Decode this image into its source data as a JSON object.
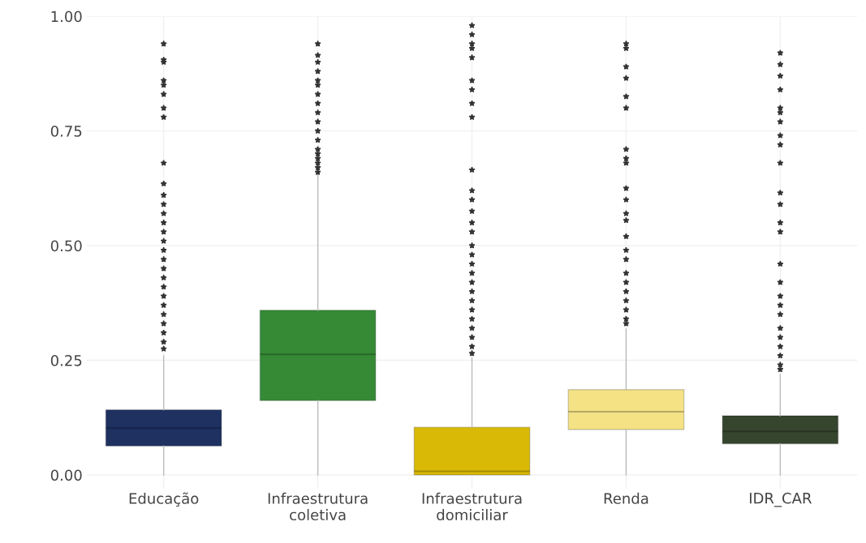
{
  "chart_data": {
    "type": "box",
    "categories": [
      "Educação",
      "Infraestrutura\ncoletiva",
      "Infraestrutura\ndomiciliar",
      "Renda",
      "IDR_CAR"
    ],
    "colors": [
      "#1e3160",
      "#368a36",
      "#d9b906",
      "#f4e285",
      "#36452d"
    ],
    "boxes": [
      {
        "low": 0,
        "q1": 0.063,
        "median": 0.102,
        "q3": 0.142,
        "high": 0.26,
        "outliers": [
          0.94,
          0.905,
          0.9,
          0.86,
          0.85,
          0.83,
          0.8,
          0.78,
          0.68,
          0.635,
          0.61,
          0.59,
          0.57,
          0.55,
          0.53,
          0.51,
          0.49,
          0.47,
          0.45,
          0.43,
          0.41,
          0.39,
          0.37,
          0.35,
          0.33,
          0.31,
          0.29,
          0.275
        ]
      },
      {
        "low": 0,
        "q1": 0.162,
        "median": 0.263,
        "q3": 0.359,
        "high": 0.655,
        "outliers": [
          0.94,
          0.915,
          0.9,
          0.88,
          0.86,
          0.85,
          0.83,
          0.81,
          0.79,
          0.77,
          0.75,
          0.73,
          0.71,
          0.7,
          0.69,
          0.68,
          0.67,
          0.66
        ]
      },
      {
        "low": 0,
        "q1": 0,
        "median": 0.008,
        "q3": 0.104,
        "high": 0.255,
        "outliers": [
          0.98,
          0.96,
          0.94,
          0.93,
          0.91,
          0.86,
          0.84,
          0.81,
          0.78,
          0.665,
          0.62,
          0.6,
          0.575,
          0.55,
          0.53,
          0.5,
          0.48,
          0.46,
          0.44,
          0.42,
          0.4,
          0.38,
          0.36,
          0.34,
          0.32,
          0.3,
          0.28,
          0.265
        ]
      },
      {
        "low": 0,
        "q1": 0.099,
        "median": 0.138,
        "q3": 0.186,
        "high": 0.318,
        "outliers": [
          0.94,
          0.93,
          0.89,
          0.865,
          0.825,
          0.8,
          0.71,
          0.69,
          0.68,
          0.625,
          0.6,
          0.57,
          0.555,
          0.52,
          0.49,
          0.47,
          0.44,
          0.42,
          0.4,
          0.38,
          0.36,
          0.34,
          0.33
        ]
      },
      {
        "low": 0,
        "q1": 0.068,
        "median": 0.095,
        "q3": 0.129,
        "high": 0.219,
        "outliers": [
          0.92,
          0.895,
          0.87,
          0.84,
          0.8,
          0.79,
          0.77,
          0.74,
          0.72,
          0.68,
          0.615,
          0.59,
          0.55,
          0.53,
          0.46,
          0.42,
          0.39,
          0.37,
          0.35,
          0.32,
          0.3,
          0.28,
          0.26,
          0.24,
          0.23
        ]
      }
    ],
    "ylim": [
      -0.03,
      1.0
    ],
    "yticks": [
      {
        "value": 0,
        "label": "0.00"
      },
      {
        "value": 0.25,
        "label": "0.25"
      },
      {
        "value": 0.5,
        "label": "0.50"
      },
      {
        "value": 0.75,
        "label": "0.75"
      },
      {
        "value": 1.0,
        "label": "1.00"
      }
    ],
    "grid": true
  }
}
